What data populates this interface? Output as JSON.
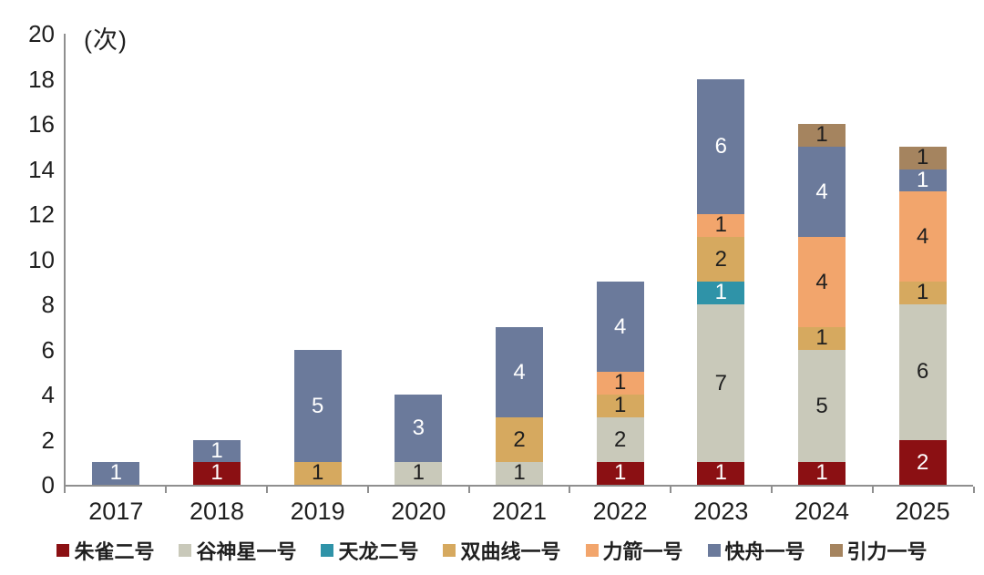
{
  "chart_data": {
    "type": "bar",
    "stacked": true,
    "unit_label": "(次)",
    "categories": [
      "2017",
      "2018",
      "2019",
      "2020",
      "2021",
      "2022",
      "2023",
      "2024",
      "2025"
    ],
    "series": [
      {
        "name": "朱雀二号",
        "color": "#8b1013",
        "label_color": "#ffffff",
        "values": [
          0,
          1,
          0,
          0,
          0,
          1,
          1,
          1,
          2
        ]
      },
      {
        "name": "谷神星一号",
        "color": "#c9c9ba",
        "label_color": "#1f1f1f",
        "values": [
          0,
          0,
          0,
          1,
          1,
          2,
          7,
          5,
          6
        ]
      },
      {
        "name": "天龙二号",
        "color": "#2f93a8",
        "label_color": "#ffffff",
        "values": [
          0,
          0,
          0,
          0,
          0,
          0,
          1,
          0,
          0
        ]
      },
      {
        "name": "双曲线一号",
        "color": "#d6a95f",
        "label_color": "#1f1f1f",
        "values": [
          0,
          0,
          1,
          0,
          2,
          1,
          2,
          1,
          1
        ]
      },
      {
        "name": "力箭一号",
        "color": "#f2a56c",
        "label_color": "#1f1f1f",
        "values": [
          0,
          0,
          0,
          0,
          0,
          1,
          1,
          4,
          4
        ]
      },
      {
        "name": "快舟一号",
        "color": "#6b7a9b",
        "label_color": "#ffffff",
        "values": [
          1,
          1,
          5,
          3,
          4,
          4,
          6,
          4,
          1
        ]
      },
      {
        "name": "引力一号",
        "color": "#a5845f",
        "label_color": "#1f1f1f",
        "values": [
          0,
          0,
          0,
          0,
          0,
          0,
          0,
          1,
          1
        ]
      }
    ],
    "totals": [
      1,
      2,
      6,
      4,
      7,
      9,
      18,
      16,
      15
    ],
    "ylim": [
      0,
      20
    ],
    "yticks": [
      0,
      2,
      4,
      6,
      8,
      10,
      12,
      14,
      16,
      18,
      20
    ],
    "grid": false,
    "legend_position": "bottom",
    "axis_color": "#8f8f8f",
    "text_color": "#1f1f1f"
  }
}
